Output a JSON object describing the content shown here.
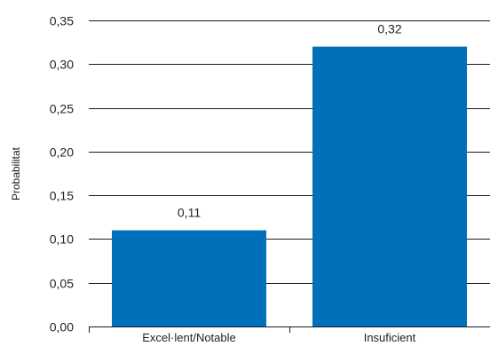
{
  "chart_data": {
    "type": "bar",
    "categories": [
      "Excel·lent/Notable",
      "Insuficient"
    ],
    "values": [
      0.11,
      0.32
    ],
    "data_labels": [
      "0,11",
      "0,32"
    ],
    "title": "",
    "xlabel": "",
    "ylabel": "Probabilitat",
    "ylim": [
      0,
      0.35
    ],
    "yticks": [
      0,
      0.05,
      0.1,
      0.15,
      0.2,
      0.25,
      0.3,
      0.35
    ],
    "ytick_labels": [
      "0,00",
      "0,05",
      "0,10",
      "0,15",
      "0,20",
      "0,25",
      "0,30",
      "0,35"
    ],
    "grid": true,
    "legend": "none",
    "bar_color": "#0070bb",
    "grid_color": "#1a1a1a"
  }
}
